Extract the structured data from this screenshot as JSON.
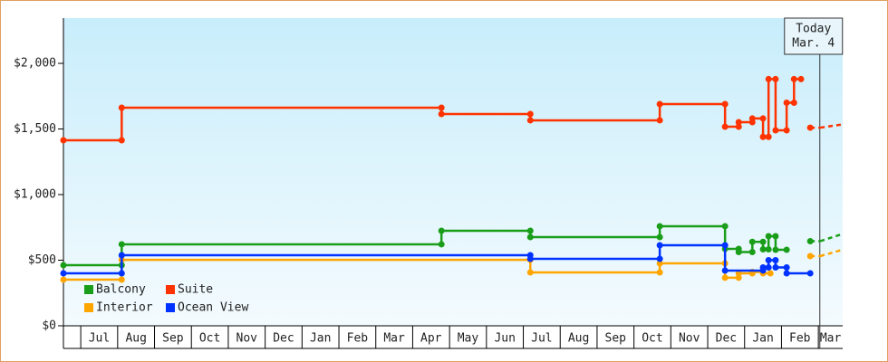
{
  "chart_data": {
    "type": "line",
    "step": true,
    "xlim": [
      -0.47,
      20.66
    ],
    "xticks": [
      {
        "value": 0.5,
        "label": "Jul"
      },
      {
        "value": 1.5,
        "label": "Aug"
      },
      {
        "value": 2.5,
        "label": "Sep"
      },
      {
        "value": 3.5,
        "label": "Oct"
      },
      {
        "value": 4.5,
        "label": "Nov"
      },
      {
        "value": 5.5,
        "label": "Dec"
      },
      {
        "value": 6.5,
        "label": "Jan"
      },
      {
        "value": 7.5,
        "label": "Feb"
      },
      {
        "value": 8.5,
        "label": "Mar"
      },
      {
        "value": 9.5,
        "label": "Apr"
      },
      {
        "value": 10.5,
        "label": "May"
      },
      {
        "value": 11.5,
        "label": "Jun"
      },
      {
        "value": 12.5,
        "label": "Jul"
      },
      {
        "value": 13.5,
        "label": "Aug"
      },
      {
        "value": 14.5,
        "label": "Sep"
      },
      {
        "value": 15.5,
        "label": "Oct"
      },
      {
        "value": 16.5,
        "label": "Nov"
      },
      {
        "value": 17.5,
        "label": "Dec"
      },
      {
        "value": 18.5,
        "label": "Jan"
      },
      {
        "value": 19.5,
        "label": "Feb"
      },
      {
        "value": 20.5,
        "label": "Mar"
      }
    ],
    "ylim": [
      0,
      2345
    ],
    "yticks": [
      {
        "value": 0,
        "label": "$0"
      },
      {
        "value": 500,
        "label": "$500"
      },
      {
        "value": 1000,
        "label": "$1,000"
      },
      {
        "value": 1500,
        "label": "$1,500"
      },
      {
        "value": 2000,
        "label": "$2,000"
      }
    ],
    "annotation": {
      "x": 20.04,
      "lines": [
        "Today",
        "Mar. 4"
      ]
    },
    "legend": "lower left",
    "series": [
      {
        "name": "Balcony",
        "color": "#1a9e1a",
        "x": [
          -0.47,
          1.11,
          1.11,
          9.78,
          9.78,
          12.19,
          12.19,
          15.7,
          15.7,
          17.47,
          17.47,
          17.84,
          17.84,
          18.21,
          18.21,
          18.5,
          18.5,
          18.65,
          18.65,
          18.84,
          18.84,
          19.14,
          null,
          19.78,
          20.05,
          20.66
        ],
        "values": [
          462,
          462,
          621,
          621,
          724,
          724,
          676,
          676,
          759,
          759,
          586,
          586,
          562,
          562,
          640,
          640,
          583,
          583,
          683,
          683,
          579,
          579,
          null,
          645,
          645,
          700
        ]
      },
      {
        "name": "Suite",
        "color": "#ff3300",
        "x": [
          -0.47,
          1.11,
          1.11,
          9.78,
          9.78,
          12.19,
          12.19,
          15.7,
          15.7,
          17.47,
          17.47,
          17.84,
          17.84,
          18.21,
          18.21,
          18.5,
          18.5,
          18.65,
          18.65,
          18.84,
          18.84,
          19.14,
          19.14,
          19.34,
          19.34,
          19.53,
          null,
          19.78,
          20.05,
          20.66
        ],
        "values": [
          1414,
          1414,
          1662,
          1662,
          1614,
          1614,
          1566,
          1566,
          1690,
          1690,
          1517,
          1517,
          1552,
          1552,
          1580,
          1580,
          1440,
          1440,
          1880,
          1880,
          1490,
          1490,
          1700,
          1700,
          1880,
          1880,
          null,
          1510,
          1510,
          1535
        ]
      },
      {
        "name": "Interior",
        "color": "#ffa500",
        "x": [
          -0.47,
          1.11,
          1.11,
          12.19,
          12.19,
          15.7,
          15.7,
          17.47,
          17.47,
          17.84,
          17.84,
          18.21,
          18.21,
          18.5,
          18.5,
          18.7,
          null,
          19.78,
          20.05,
          20.66
        ],
        "values": [
          352,
          352,
          503,
          503,
          407,
          407,
          476,
          476,
          366,
          366,
          400,
          400,
          410,
          410,
          400,
          400,
          null,
          531,
          531,
          580
        ]
      },
      {
        "name": "Ocean View",
        "color": "#0033ff",
        "x": [
          -0.47,
          1.11,
          1.11,
          12.19,
          12.19,
          15.7,
          15.7,
          17.47,
          17.47,
          18.5,
          18.5,
          18.65,
          18.65,
          18.84,
          18.84,
          19.14,
          19.14,
          19.78
        ],
        "values": [
          400,
          400,
          538,
          538,
          510,
          510,
          614,
          614,
          421,
          421,
          445,
          445,
          500,
          500,
          445,
          445,
          400,
          400
        ]
      }
    ]
  }
}
